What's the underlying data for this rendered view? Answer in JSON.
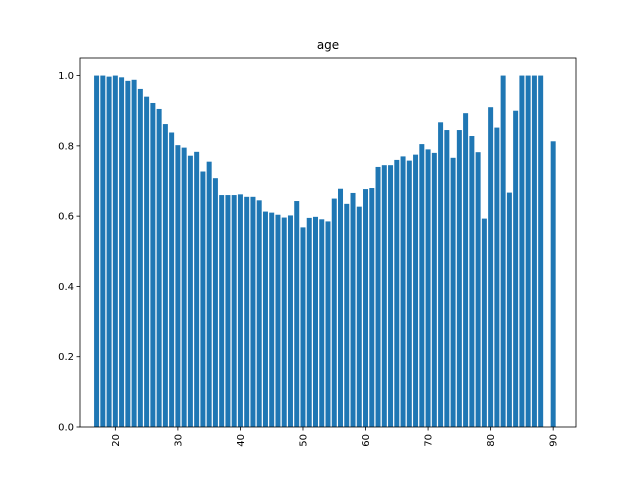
{
  "chart_data": {
    "type": "bar",
    "title": "age",
    "xlabel": "",
    "ylabel": "",
    "xlim": [
      14.35,
      93.65
    ],
    "ylim": [
      0,
      1.05
    ],
    "xticks": [
      20,
      30,
      40,
      50,
      60,
      70,
      80,
      90
    ],
    "yticks": [
      0.0,
      0.2,
      0.4,
      0.6,
      0.8,
      1.0
    ],
    "ytick_labels": [
      "0.0",
      "0.2",
      "0.4",
      "0.6",
      "0.8",
      "1.0"
    ],
    "xtick_rotation": 90,
    "bar_color": "#1f77b4",
    "grid": false,
    "x": [
      17,
      18,
      19,
      20,
      21,
      22,
      23,
      24,
      25,
      26,
      27,
      28,
      29,
      30,
      31,
      32,
      33,
      34,
      35,
      36,
      37,
      38,
      39,
      40,
      41,
      42,
      43,
      44,
      45,
      46,
      47,
      48,
      49,
      50,
      51,
      52,
      53,
      54,
      55,
      56,
      57,
      58,
      59,
      60,
      61,
      62,
      63,
      64,
      65,
      66,
      67,
      68,
      69,
      70,
      71,
      72,
      73,
      74,
      75,
      76,
      77,
      78,
      79,
      80,
      81,
      82,
      83,
      84,
      85,
      86,
      87,
      88,
      90
    ],
    "values": [
      1.0,
      1.0,
      0.997,
      1.0,
      0.995,
      0.985,
      0.988,
      0.962,
      0.94,
      0.922,
      0.905,
      0.862,
      0.838,
      0.802,
      0.795,
      0.772,
      0.783,
      0.727,
      0.755,
      0.708,
      0.66,
      0.66,
      0.66,
      0.662,
      0.655,
      0.655,
      0.645,
      0.613,
      0.61,
      0.604,
      0.596,
      0.602,
      0.643,
      0.568,
      0.595,
      0.598,
      0.591,
      0.585,
      0.65,
      0.678,
      0.635,
      0.666,
      0.627,
      0.677,
      0.68,
      0.74,
      0.745,
      0.745,
      0.76,
      0.77,
      0.758,
      0.775,
      0.805,
      0.79,
      0.78,
      0.867,
      0.845,
      0.766,
      0.845,
      0.893,
      0.828,
      0.782,
      0.593,
      0.91,
      0.852,
      1.0,
      0.667,
      0.9,
      1.0,
      1.0,
      1.0,
      1.0,
      0.813
    ]
  }
}
